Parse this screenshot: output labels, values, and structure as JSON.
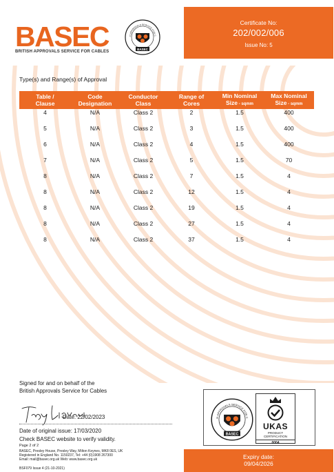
{
  "header": {
    "logo_text": "BASEC",
    "logo_subtitle": "BRITISH APPROVALS SERVICE FOR CABLES",
    "seal_top_text": "BRITISH APPROVALS SERVICE FOR CABLES",
    "seal_bottom_text": "BASEC",
    "certificate_label": "Certificate No:",
    "certificate_number": "202/002/006",
    "issue": "Issue No: 5"
  },
  "section_title": "Type(s) and Range(s) of Approval",
  "table": {
    "headers": [
      {
        "line1": "Table /",
        "line2": "Clause",
        "small": ""
      },
      {
        "line1": "Code",
        "line2": "Designation",
        "small": ""
      },
      {
        "line1": "Conductor",
        "line2": "Class",
        "small": ""
      },
      {
        "line1": "Range of",
        "line2": "Cores",
        "small": ""
      },
      {
        "line1": "Min Nominal",
        "line2": "Size",
        "small": " - sqmm"
      },
      {
        "line1": "Max Nominal",
        "line2": "Size",
        "small": " - sqmm"
      }
    ],
    "rows": [
      [
        "4",
        "N/A",
        "Class 2",
        "2",
        "1.5",
        "400"
      ],
      [
        "5",
        "N/A",
        "Class 2",
        "3",
        "1.5",
        "400"
      ],
      [
        "6",
        "N/A",
        "Class 2",
        "4",
        "1.5",
        "400"
      ],
      [
        "7",
        "N/A",
        "Class 2",
        "5",
        "1.5",
        "70"
      ],
      [
        "8",
        "N/A",
        "Class 2",
        "7",
        "1.5",
        "4"
      ],
      [
        "8",
        "N/A",
        "Class 2",
        "12",
        "1.5",
        "4"
      ],
      [
        "8",
        "N/A",
        "Class 2",
        "19",
        "1.5",
        "4"
      ],
      [
        "8",
        "N/A",
        "Class 2",
        "27",
        "1.5",
        "4"
      ],
      [
        "8",
        "N/A",
        "Class 2",
        "37",
        "1.5",
        "4"
      ]
    ]
  },
  "footer": {
    "signed_line1": "Signed for and on behalf of the",
    "signed_line2": "British Approvals Service for Cables",
    "signature_text": "Tony Liovari",
    "date": "Date: 22/02/2023",
    "original_issue": "Date of original issue: 17/03/2020",
    "check": "Check BASEC website to verify validity.",
    "page": "Page 2 of 2",
    "address_line1": "BASEC, Presley House, Presley Way, Milton Keynes, MK8 0ES, UK",
    "address_line2": "Registered in England No. 1150237, Tel: +44 (0)1908 267300",
    "address_line3": "Email: mail@basec.org.uk   Web: www.basec.org.uk",
    "form_ref": "BSF079 Issue 4 (21-10-2021)"
  },
  "accreditation": {
    "ukas_title": "UKAS",
    "ukas_line1": "PRODUCT",
    "ukas_line2": "CERTIFICATION",
    "ukas_number": "0004"
  },
  "expiry": {
    "label": "Expiry date:",
    "date": "09/04/2026"
  },
  "colors": {
    "accent": "#ec6a24",
    "watermark": "#fbe3d2"
  }
}
